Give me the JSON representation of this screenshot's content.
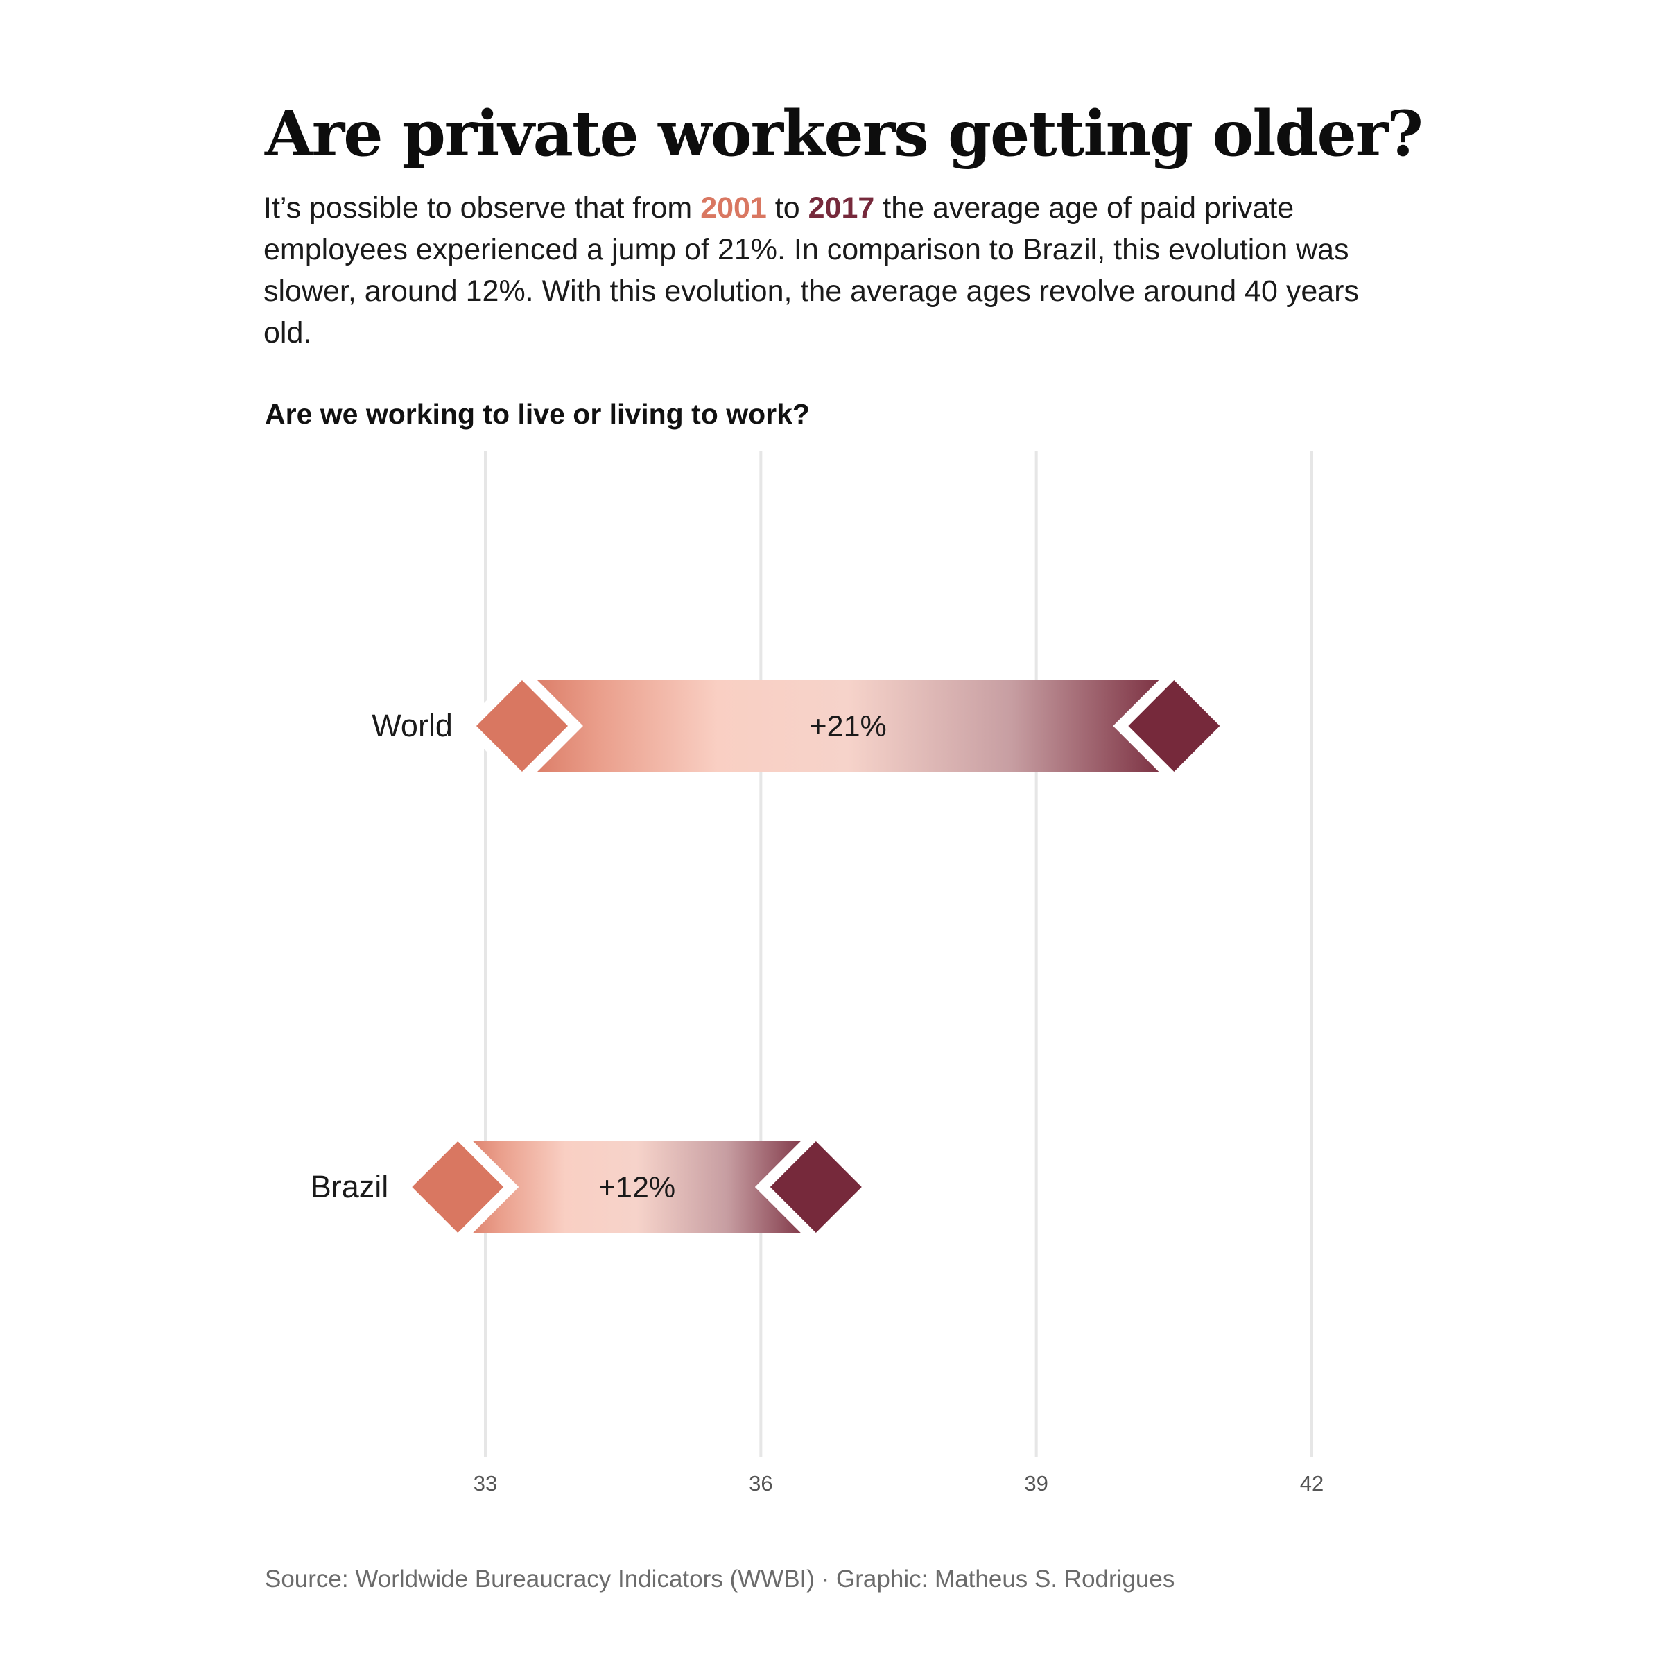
{
  "title": "Are private workers getting older?",
  "subtitle": {
    "part1": "It’s possible to observe that from ",
    "year_start": "2001",
    "part2": " to ",
    "year_end": "2017",
    "part3": " the average age of paid private employees experienced a jump of 21%. In comparison to Brazil, this evolution was slower, around 12%. With this evolution, the average ages revolve around 40 years old."
  },
  "chart_subtitle": "Are we working to live or living to work?",
  "caption": "Source: Worldwide Bureaucracy Indicators (WWBI) · Graphic: Matheus S. Rodrigues",
  "colors": {
    "start": "#d97761",
    "end": "#76293b",
    "mid": "#f9cfc3",
    "grid": "#e6e6e6"
  },
  "chart_data": {
    "type": "dumbbell",
    "xlim": [
      33,
      42
    ],
    "x_ticks": [
      33,
      36,
      39,
      42
    ],
    "grid": "vertical",
    "series_labels": [
      "2001",
      "2017"
    ],
    "rows": [
      {
        "category": "World",
        "start": 33.4,
        "end": 40.5,
        "label": "+21%"
      },
      {
        "category": "Brazil",
        "start": 32.7,
        "end": 36.6,
        "label": "+12%"
      }
    ]
  }
}
